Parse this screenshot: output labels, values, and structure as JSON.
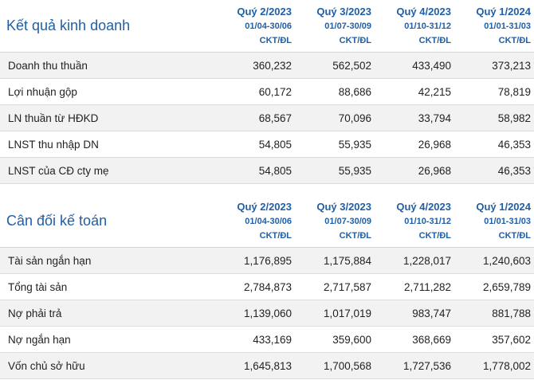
{
  "sections": [
    {
      "title": "Kết quả kinh doanh",
      "columns": [
        {
          "quarter": "Quý 2/2023",
          "range": "01/04-30/06",
          "audit": "CKT/ĐL"
        },
        {
          "quarter": "Quý 3/2023",
          "range": "01/07-30/09",
          "audit": "CKT/ĐL"
        },
        {
          "quarter": "Quý 4/2023",
          "range": "01/10-31/12",
          "audit": "CKT/ĐL"
        },
        {
          "quarter": "Quý 1/2024",
          "range": "01/01-31/03",
          "audit": "CKT/ĐL"
        }
      ],
      "rows": [
        {
          "label": "Doanh thu thuần",
          "values": [
            "360,232",
            "562,502",
            "433,490",
            "373,213"
          ]
        },
        {
          "label": "Lợi nhuận gộp",
          "values": [
            "60,172",
            "88,686",
            "42,215",
            "78,819"
          ]
        },
        {
          "label": "LN thuần từ HĐKD",
          "values": [
            "68,567",
            "70,096",
            "33,794",
            "58,982"
          ]
        },
        {
          "label": "LNST thu nhập DN",
          "values": [
            "54,805",
            "55,935",
            "26,968",
            "46,353"
          ]
        },
        {
          "label": "LNST của CĐ cty mẹ",
          "values": [
            "54,805",
            "55,935",
            "26,968",
            "46,353"
          ]
        }
      ]
    },
    {
      "title": "Cân đối kế toán",
      "columns": [
        {
          "quarter": "Quý 2/2023",
          "range": "01/04-30/06",
          "audit": "CKT/ĐL"
        },
        {
          "quarter": "Quý 3/2023",
          "range": "01/07-30/09",
          "audit": "CKT/ĐL"
        },
        {
          "quarter": "Quý 4/2023",
          "range": "01/10-31/12",
          "audit": "CKT/ĐL"
        },
        {
          "quarter": "Quý 1/2024",
          "range": "01/01-31/03",
          "audit": "CKT/ĐL"
        }
      ],
      "rows": [
        {
          "label": "Tài sản ngắn hạn",
          "values": [
            "1,176,895",
            "1,175,884",
            "1,228,017",
            "1,240,603"
          ]
        },
        {
          "label": "Tổng tài sản",
          "values": [
            "2,784,873",
            "2,717,587",
            "2,711,282",
            "2,659,789"
          ]
        },
        {
          "label": "Nợ phải trả",
          "values": [
            "1,139,060",
            "1,017,019",
            "983,747",
            "881,788"
          ]
        },
        {
          "label": "Nợ ngắn hạn",
          "values": [
            "433,169",
            "359,600",
            "368,669",
            "357,602"
          ]
        },
        {
          "label": "Vốn chủ sở hữu",
          "values": [
            "1,645,813",
            "1,700,568",
            "1,727,536",
            "1,778,002"
          ]
        }
      ]
    }
  ],
  "colors": {
    "accent": "#1f5fa8",
    "row_shade": "#f2f2f2",
    "border": "#dcdcdc"
  }
}
